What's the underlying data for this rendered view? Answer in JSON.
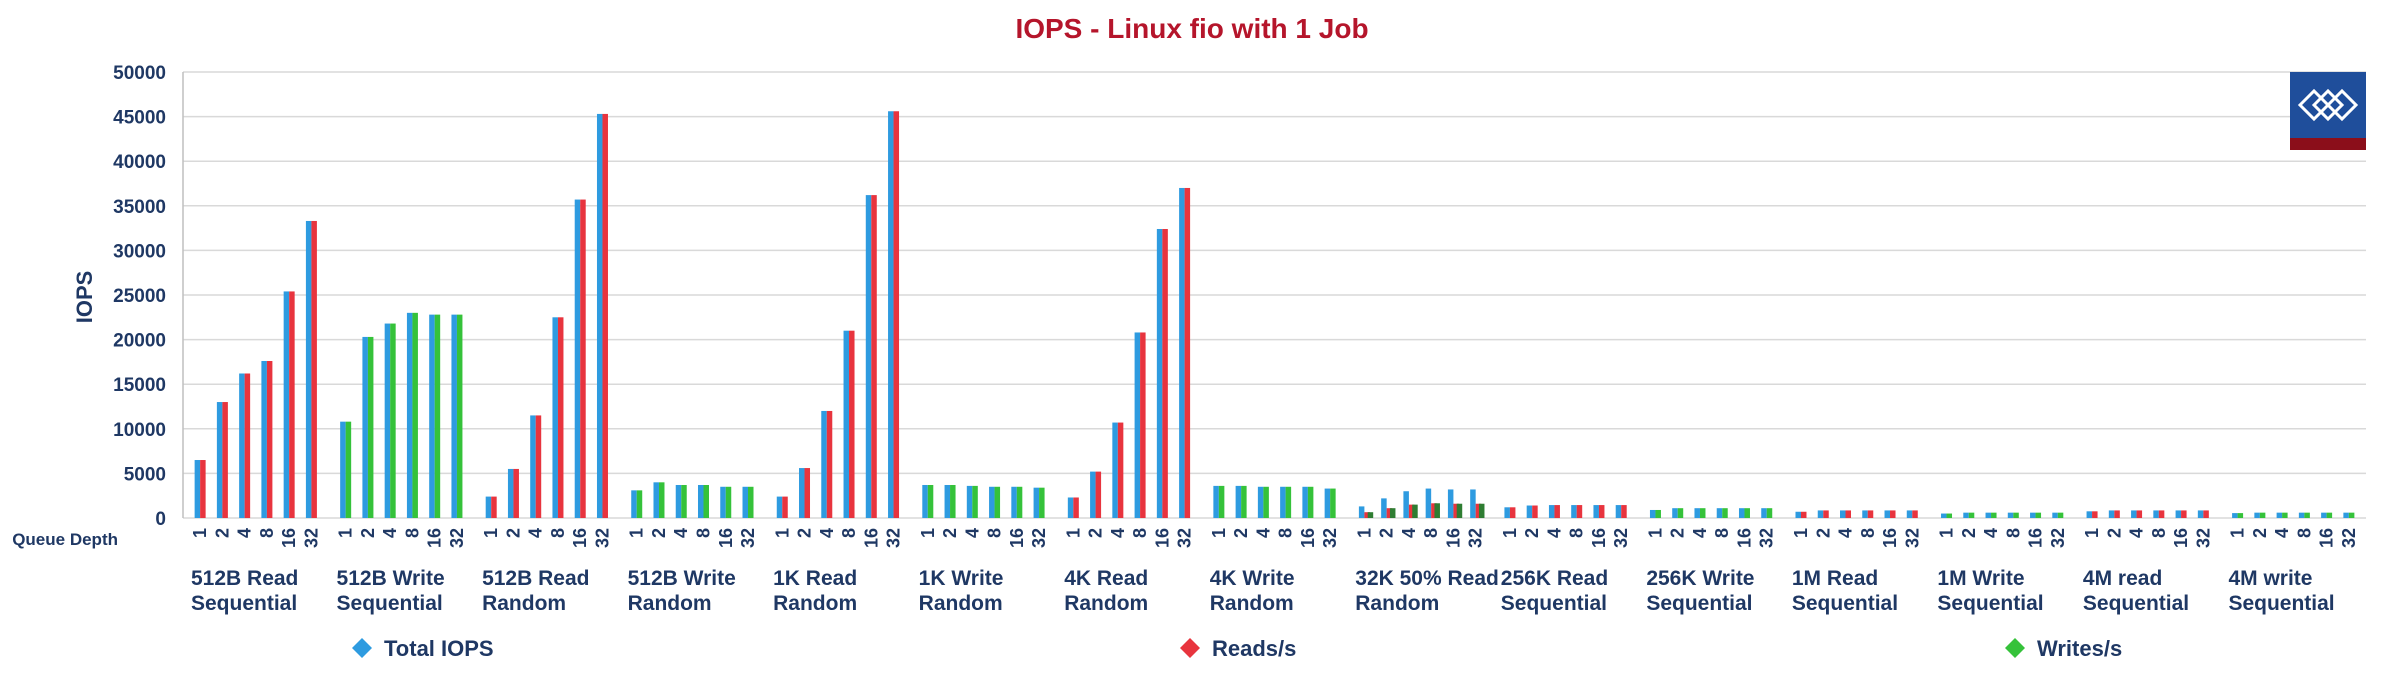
{
  "chart_data": {
    "type": "bar",
    "title": "IOPS - Linux  fio with 1 Job",
    "ylabel": "IOPS",
    "xlabel": "Queue Depth",
    "ylim": [
      0,
      50000
    ],
    "yticks": [
      0,
      5000,
      10000,
      15000,
      20000,
      25000,
      30000,
      35000,
      40000,
      45000,
      50000
    ],
    "grid": true,
    "legend_position": "bottom",
    "queue_depths": [
      "1",
      "2",
      "4",
      "8",
      "16",
      "32"
    ],
    "colors": {
      "total": "#2e9be0",
      "reads": "#e8343e",
      "writes": "#35c23a",
      "writes_dark": "#2e7d32",
      "text": "#1f3864",
      "title": "#b5152b",
      "grid": "#d9d9d9"
    },
    "legend": [
      {
        "key": "total",
        "label": "Total IOPS"
      },
      {
        "key": "reads",
        "label": "Reads/s"
      },
      {
        "key": "writes",
        "label": "Writes/s"
      }
    ],
    "groups": [
      {
        "label_line1": "512B Read",
        "label_line2": "Sequential",
        "total": [
          6500,
          13000,
          16200,
          17600,
          25400,
          33300
        ],
        "reads": [
          6500,
          13000,
          16200,
          17600,
          25400,
          33300
        ],
        "writes": [
          0,
          0,
          0,
          0,
          0,
          0
        ]
      },
      {
        "label_line1": "512B Write",
        "label_line2": "Sequential",
        "total": [
          10800,
          20300,
          21800,
          23000,
          22800,
          22800
        ],
        "reads": [
          0,
          0,
          0,
          0,
          0,
          0
        ],
        "writes": [
          10800,
          20300,
          21800,
          23000,
          22800,
          22800
        ]
      },
      {
        "label_line1": "512B Read",
        "label_line2": "Random",
        "total": [
          2400,
          5500,
          11500,
          22500,
          35700,
          45300
        ],
        "reads": [
          2400,
          5500,
          11500,
          22500,
          35700,
          45300
        ],
        "writes": [
          0,
          0,
          0,
          0,
          0,
          0
        ]
      },
      {
        "label_line1": "512B Write",
        "label_line2": "Random",
        "total": [
          3100,
          4000,
          3700,
          3700,
          3500,
          3500
        ],
        "reads": [
          0,
          0,
          0,
          0,
          0,
          0
        ],
        "writes": [
          3100,
          4000,
          3700,
          3700,
          3500,
          3500
        ]
      },
      {
        "label_line1": "1K Read",
        "label_line2": "Random",
        "total": [
          2400,
          5600,
          12000,
          21000,
          36200,
          45600
        ],
        "reads": [
          2400,
          5600,
          12000,
          21000,
          36200,
          45600
        ],
        "writes": [
          0,
          0,
          0,
          0,
          0,
          0
        ]
      },
      {
        "label_line1": "1K Write",
        "label_line2": "Random",
        "total": [
          3700,
          3700,
          3600,
          3500,
          3500,
          3400
        ],
        "reads": [
          0,
          0,
          0,
          0,
          0,
          0
        ],
        "writes": [
          3700,
          3700,
          3600,
          3500,
          3500,
          3400
        ]
      },
      {
        "label_line1": "4K Read",
        "label_line2": "Random",
        "total": [
          2300,
          5200,
          10700,
          20800,
          32400,
          37000
        ],
        "reads": [
          2300,
          5200,
          10700,
          20800,
          32400,
          37000
        ],
        "writes": [
          0,
          0,
          0,
          0,
          0,
          0
        ]
      },
      {
        "label_line1": "4K Write",
        "label_line2": "Random",
        "total": [
          3600,
          3600,
          3500,
          3500,
          3500,
          3300
        ],
        "reads": [
          0,
          0,
          0,
          0,
          0,
          0
        ],
        "writes": [
          3600,
          3600,
          3500,
          3500,
          3500,
          3300
        ]
      },
      {
        "label_line1": "32K 50% Read",
        "label_line2": "Random",
        "total": [
          1300,
          2200,
          3000,
          3300,
          3200,
          3200
        ],
        "reads": [
          650,
          1100,
          1500,
          1650,
          1600,
          1600
        ],
        "writes": [
          650,
          1100,
          1500,
          1650,
          1600,
          1600
        ]
      },
      {
        "label_line1": "256K Read",
        "label_line2": "Sequential",
        "total": [
          1200,
          1400,
          1450,
          1450,
          1450,
          1450
        ],
        "reads": [
          1200,
          1400,
          1450,
          1450,
          1450,
          1450
        ],
        "writes": [
          0,
          0,
          0,
          0,
          0,
          0
        ]
      },
      {
        "label_line1": "256K Write",
        "label_line2": "Sequential",
        "total": [
          900,
          1100,
          1100,
          1100,
          1100,
          1100
        ],
        "reads": [
          0,
          0,
          0,
          0,
          0,
          0
        ],
        "writes": [
          900,
          1100,
          1100,
          1100,
          1100,
          1100
        ]
      },
      {
        "label_line1": "1M Read",
        "label_line2": "Sequential",
        "total": [
          700,
          850,
          850,
          850,
          850,
          850
        ],
        "reads": [
          700,
          850,
          850,
          850,
          850,
          850
        ],
        "writes": [
          0,
          0,
          0,
          0,
          0,
          0
        ]
      },
      {
        "label_line1": "1M Write",
        "label_line2": "Sequential",
        "total": [
          500,
          600,
          600,
          600,
          600,
          600
        ],
        "reads": [
          0,
          0,
          0,
          0,
          0,
          0
        ],
        "writes": [
          500,
          600,
          600,
          600,
          600,
          600
        ]
      },
      {
        "label_line1": "4M read",
        "label_line2": "Sequential",
        "total": [
          750,
          850,
          850,
          850,
          850,
          850
        ],
        "reads": [
          750,
          850,
          850,
          850,
          850,
          850
        ],
        "writes": [
          0,
          0,
          0,
          0,
          0,
          0
        ]
      },
      {
        "label_line1": "4M write",
        "label_line2": "Sequential",
        "total": [
          550,
          600,
          600,
          600,
          600,
          600
        ],
        "reads": [
          0,
          0,
          0,
          0,
          0,
          0
        ],
        "writes": [
          550,
          600,
          600,
          600,
          600,
          600
        ]
      }
    ],
    "logo_icon": "diamond-logo-icon"
  }
}
